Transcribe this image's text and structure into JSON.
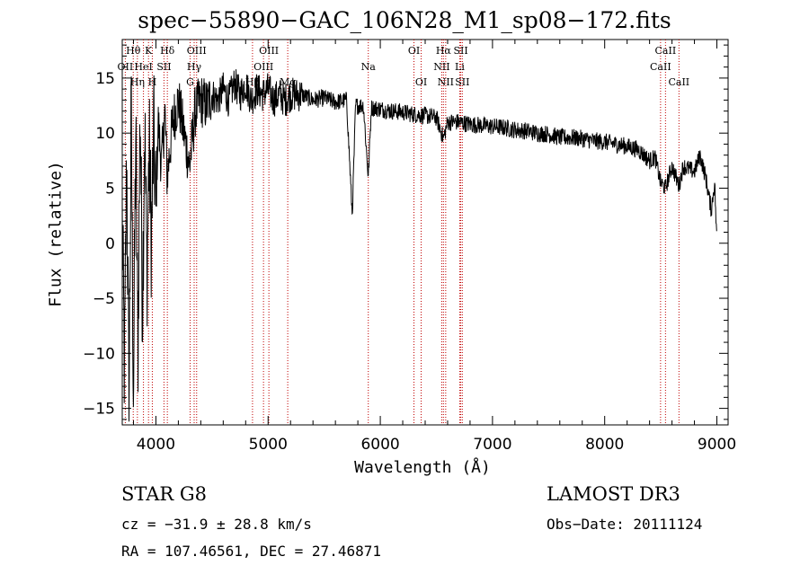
{
  "header": {
    "title": "spec−55890−GAC_106N28_M1_sp08−172.fits"
  },
  "footer": {
    "class_label": "STAR    G8",
    "survey": "LAMOST DR3",
    "cz": "cz = −31.9 ± 28.8 km/s",
    "obs_date": "Obs−Date: 20111124",
    "radec": "RA = 107.46561, DEC =  27.46871"
  },
  "chart_data": {
    "type": "line",
    "title": "spec−55890−GAC_106N28_M1_sp08−172.fits",
    "xlabel": "Wavelength (Å)",
    "ylabel": "Flux (relative)",
    "xlim": [
      3700,
      9100
    ],
    "ylim": [
      -16.5,
      18.5
    ],
    "x_ticks": [
      4000,
      5000,
      6000,
      7000,
      8000,
      9000
    ],
    "y_ticks": [
      -15,
      -10,
      -5,
      0,
      5,
      10,
      15
    ],
    "y_tick_labels": [
      "−15",
      "−10",
      "−5",
      "0",
      "5",
      "10",
      "15"
    ],
    "series": [
      {
        "name": "flux",
        "points": [
          [
            3700,
            2.0
          ],
          [
            3720,
            -12.0
          ],
          [
            3740,
            8.0
          ],
          [
            3760,
            -15.0
          ],
          [
            3780,
            12.0
          ],
          [
            3800,
            -14.0
          ],
          [
            3820,
            10.0
          ],
          [
            3840,
            -10.0
          ],
          [
            3860,
            13.0
          ],
          [
            3880,
            -6.0
          ],
          [
            3900,
            11.0
          ],
          [
            3920,
            -3.0
          ],
          [
            3940,
            9.0
          ],
          [
            3960,
            0.0
          ],
          [
            3980,
            10.0
          ],
          [
            4000,
            3.0
          ],
          [
            4020,
            11.0
          ],
          [
            4050,
            7.0
          ],
          [
            4080,
            12.0
          ],
          [
            4100,
            6.0
          ],
          [
            4150,
            11.0
          ],
          [
            4200,
            13.0
          ],
          [
            4250,
            10.0
          ],
          [
            4300,
            7.0
          ],
          [
            4350,
            12.0
          ],
          [
            4400,
            13.0
          ],
          [
            4450,
            12.5
          ],
          [
            4500,
            13.5
          ],
          [
            4550,
            13.0
          ],
          [
            4600,
            14.0
          ],
          [
            4650,
            13.0
          ],
          [
            4700,
            14.5
          ],
          [
            4750,
            13.5
          ],
          [
            4800,
            14.5
          ],
          [
            4850,
            13.0
          ],
          [
            4900,
            14.0
          ],
          [
            4950,
            13.5
          ],
          [
            5000,
            14.0
          ],
          [
            5050,
            13.0
          ],
          [
            5100,
            13.5
          ],
          [
            5150,
            13.0
          ],
          [
            5200,
            13.5
          ],
          [
            5300,
            13.5
          ],
          [
            5400,
            13.0
          ],
          [
            5500,
            13.2
          ],
          [
            5600,
            12.8
          ],
          [
            5700,
            13.0
          ],
          [
            5750,
            2.5
          ],
          [
            5780,
            12.5
          ],
          [
            5850,
            12.5
          ],
          [
            5893,
            6.0
          ],
          [
            5920,
            12.3
          ],
          [
            6000,
            12.2
          ],
          [
            6100,
            12.0
          ],
          [
            6200,
            11.9
          ],
          [
            6300,
            11.7
          ],
          [
            6400,
            11.6
          ],
          [
            6500,
            11.4
          ],
          [
            6563,
            9.5
          ],
          [
            6600,
            11.0
          ],
          [
            6700,
            11.0
          ],
          [
            6800,
            10.8
          ],
          [
            6900,
            10.7
          ],
          [
            7000,
            10.6
          ],
          [
            7100,
            10.5
          ],
          [
            7200,
            10.3
          ],
          [
            7300,
            10.2
          ],
          [
            7400,
            10.0
          ],
          [
            7500,
            9.9
          ],
          [
            7600,
            9.6
          ],
          [
            7700,
            9.6
          ],
          [
            7800,
            9.5
          ],
          [
            7900,
            9.3
          ],
          [
            8000,
            9.2
          ],
          [
            8100,
            9.0
          ],
          [
            8200,
            8.8
          ],
          [
            8300,
            8.5
          ],
          [
            8400,
            7.5
          ],
          [
            8450,
            7.8
          ],
          [
            8498,
            5.5
          ],
          [
            8542,
            5.0
          ],
          [
            8600,
            7.0
          ],
          [
            8662,
            5.2
          ],
          [
            8700,
            7.0
          ],
          [
            8800,
            6.5
          ],
          [
            8850,
            8.0
          ],
          [
            8900,
            6.0
          ],
          [
            8950,
            3.0
          ],
          [
            8980,
            5.5
          ],
          [
            9000,
            0.0
          ]
        ]
      }
    ],
    "line_markers": [
      {
        "name": "Hθ",
        "x": 3798,
        "row": 0
      },
      {
        "name": "OII",
        "x": 3727,
        "row": 1
      },
      {
        "name": "Hη",
        "x": 3835,
        "row": 2
      },
      {
        "name": "K",
        "x": 3934,
        "row": 0
      },
      {
        "name": "HeI",
        "x": 3889,
        "row": 1
      },
      {
        "name": "H",
        "x": 3968,
        "row": 2
      },
      {
        "name": "Hδ",
        "x": 4102,
        "row": 0
      },
      {
        "name": "SII",
        "x": 4072,
        "row": 1
      },
      {
        "name": "OIII",
        "x": 4363,
        "row": 0
      },
      {
        "name": "Hγ",
        "x": 4341,
        "row": 1
      },
      {
        "name": "G",
        "x": 4305,
        "row": 2
      },
      {
        "name": "OIII",
        "x": 5007,
        "row": 0
      },
      {
        "name": "OIII",
        "x": 4959,
        "row": 1
      },
      {
        "name": "Hβ",
        "x": 4861,
        "row": 2
      },
      {
        "name": "Mg",
        "x": 5175,
        "row": 2
      },
      {
        "name": "Na",
        "x": 5893,
        "row": 1
      },
      {
        "name": "OI",
        "x": 6300,
        "row": 0
      },
      {
        "name": "OI",
        "x": 6364,
        "row": 2
      },
      {
        "name": "Hα",
        "x": 6563,
        "row": 0
      },
      {
        "name": "NII",
        "x": 6548,
        "row": 1
      },
      {
        "name": "NII",
        "x": 6583,
        "row": 2
      },
      {
        "name": "SII",
        "x": 6717,
        "row": 0
      },
      {
        "name": "Li",
        "x": 6708,
        "row": 1
      },
      {
        "name": "SII",
        "x": 6731,
        "row": 2
      },
      {
        "name": "CaII",
        "x": 8542,
        "row": 0
      },
      {
        "name": "CaII",
        "x": 8498,
        "row": 1
      },
      {
        "name": "CaII",
        "x": 8662,
        "row": 2
      }
    ],
    "colors": {
      "spectrum": "#000000",
      "markers": "#c00000"
    }
  }
}
